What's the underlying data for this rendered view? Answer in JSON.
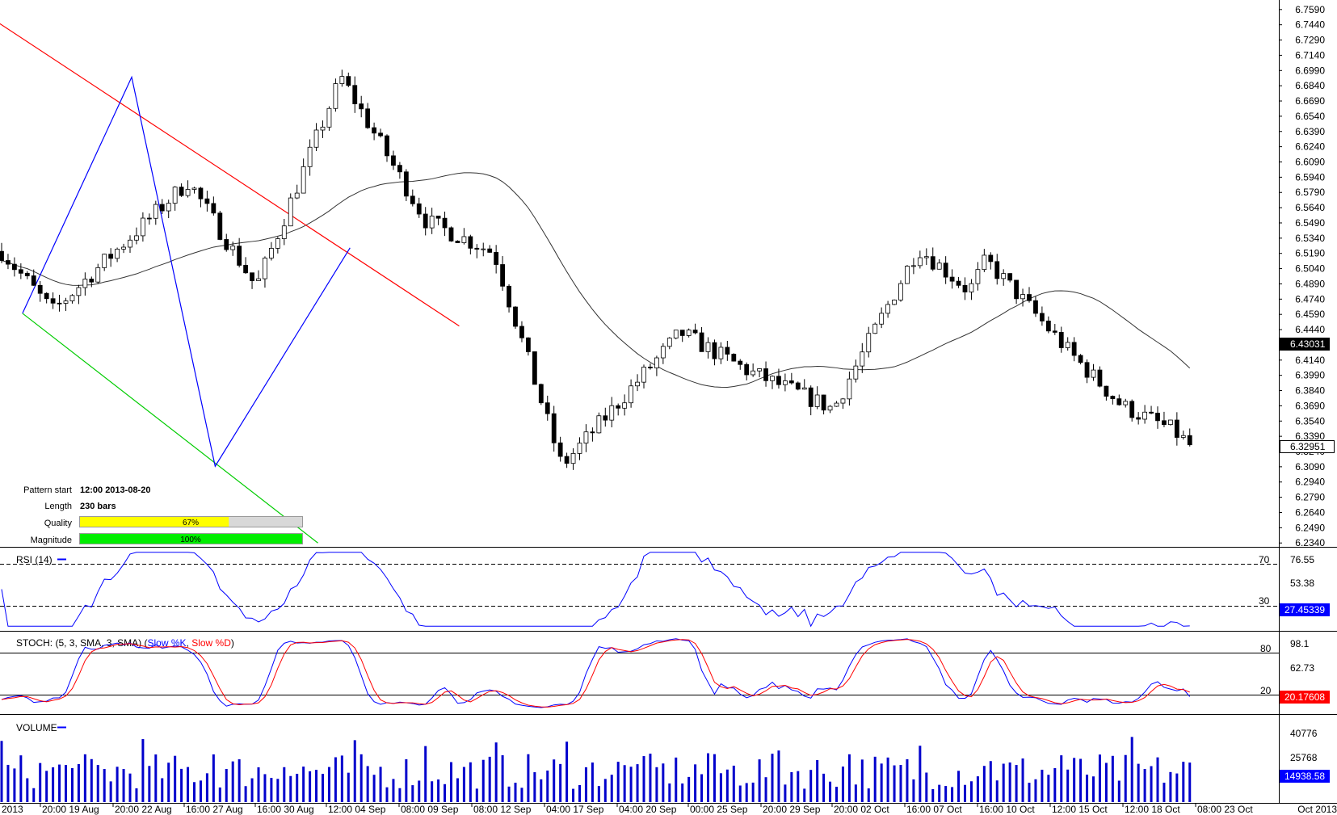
{
  "chart_data": {
    "type": "candlestick",
    "price_axis": {
      "ticks": [
        "6.7590",
        "6.7440",
        "6.7290",
        "6.7140",
        "6.6990",
        "6.6840",
        "6.6690",
        "6.6540",
        "6.6390",
        "6.6240",
        "6.6090",
        "6.5940",
        "6.5790",
        "6.5640",
        "6.5490",
        "6.5340",
        "6.5190",
        "6.5040",
        "6.4890",
        "6.4740",
        "6.4590",
        "6.4440",
        "6.4290",
        "6.4140",
        "6.3990",
        "6.3840",
        "6.3690",
        "6.3540",
        "6.3390",
        "6.3240",
        "6.3090",
        "6.2940",
        "6.2790",
        "6.2640",
        "6.2490",
        "6.2340"
      ],
      "range": [
        6.2302,
        6.7668
      ],
      "moving_average_last": "6.43031",
      "last_price": "6.32951"
    },
    "x_axis_labels": [
      "2013",
      "20:00 19 Aug",
      "20:00 22 Aug",
      "16:00 27 Aug",
      "16:00 30 Aug",
      "12:00 04 Sep",
      "08:00 09 Sep",
      "08:00 12 Sep",
      "04:00 17 Sep",
      "04:00 20 Sep",
      "00:00 25 Sep",
      "20:00 29 Sep",
      "20:00 02 Oct",
      "16:00 07 Oct",
      "16:00 10 Oct",
      "12:00 15 Oct",
      "12:00 18 Oct",
      "08:00 23 Oct",
      "Oct 2013"
    ],
    "pattern": {
      "start_label": "Pattern start",
      "start_value": "12:00 2013-08-20",
      "length_label": "Length",
      "length_value": "230 bars",
      "quality_label": "Quality",
      "quality_pct": 67,
      "quality_text": "67%",
      "magnitude_label": "Magnitude",
      "magnitude_pct": 100,
      "magnitude_text": "100%",
      "zigzag": [
        {
          "bar": 3,
          "price": 6.46
        },
        {
          "bar": 20,
          "price": 6.6925
        },
        {
          "bar": 33,
          "price": 6.3095
        },
        {
          "bar": 54,
          "price": 6.5245
        }
      ],
      "resistance_line": [
        {
          "bar": -7,
          "price": 6.772
        },
        {
          "bar": 71,
          "price": 6.4475
        }
      ],
      "support_line": [
        {
          "bar": 3,
          "price": 6.46
        },
        {
          "bar": 49,
          "price": 6.234
        }
      ]
    },
    "rsi": {
      "title": "RSI (14)",
      "levels": [
        "70",
        "30"
      ],
      "ticks": [
        "76.55",
        "53.38"
      ],
      "last": "27.45339",
      "range": [
        14,
        86
      ]
    },
    "stochastic": {
      "title_prefix": "STOCH: (5, 3, SMA, 3, SMA) (",
      "k_name": "Slow %K",
      "separator": ", ",
      "d_name": "Slow %D",
      "title_suffix": ")",
      "levels": [
        "80",
        "20"
      ],
      "ticks": [
        "98.1",
        "62.73"
      ],
      "last": "20.17608",
      "range": [
        -7,
        107
      ]
    },
    "volume": {
      "title": "VOLUME",
      "ticks": [
        "40776",
        "25768"
      ],
      "last": "14938.58",
      "range": [
        0,
        50000
      ]
    }
  },
  "colors": {
    "bull": "#ffffff",
    "bear": "#000000",
    "resistance": "#ff0000",
    "support": "#00cc00",
    "zigzag": "#0000ff",
    "ma": "#333333",
    "rsi": "#0000ff",
    "stoch_k": "#0000ff",
    "stoch_d": "#ff0000",
    "volume": "#0000cc",
    "quality_bar": "#ffff00",
    "magnitude_bar": "#00ee00",
    "last_price_badge": "#000000",
    "stoch_badge": "#ff0000",
    "blue_badge": "#0000ff"
  }
}
